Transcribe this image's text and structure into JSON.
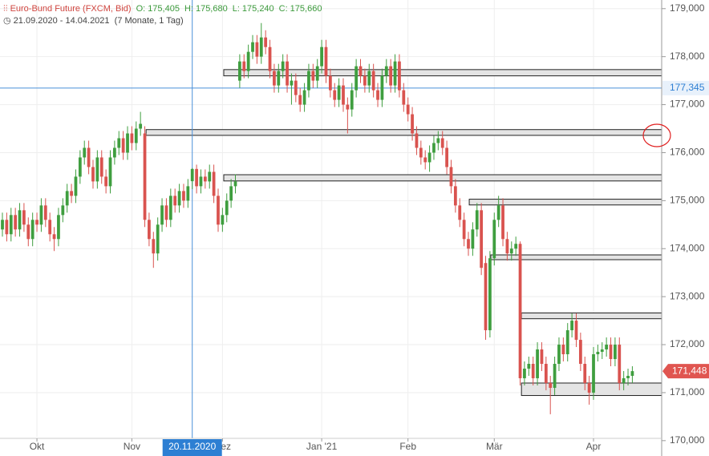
{
  "chart_data": {
    "type": "candlestick",
    "title": "Euro-Bund Future (FXCM, Bid)",
    "ohlc_header": [
      {
        "key": "O:",
        "value": "175,405"
      },
      {
        "key": "H:",
        "value": "175,680"
      },
      {
        "key": "L:",
        "value": "175,240"
      },
      {
        "key": "C:",
        "value": "175,660"
      }
    ],
    "period": "21.09.2020 - 14.04.2021",
    "period_length": "(7 Monate, 1 Tag)",
    "up_color": "#3f9e3f",
    "down_color": "#d9534f",
    "open": [
      174.4,
      174.6,
      174.3,
      174.7,
      174.4,
      174.8,
      174.5,
      174.2,
      174.6,
      174.5,
      174.9,
      174.6,
      174.3,
      174.2,
      174.7,
      174.9,
      175.2,
      175.1,
      175.5,
      175.9,
      176.1,
      175.7,
      175.4,
      175.9,
      175.5,
      175.3,
      175.9,
      176.1,
      176.3,
      176.0,
      176.4,
      176.2,
      176.5,
      176.4,
      174.6,
      174.2,
      173.9,
      174.5,
      174.9,
      174.6,
      175.1,
      174.9,
      175.2,
      175.0,
      175.405,
      175.66,
      175.3,
      175.5,
      175.4,
      175.6,
      175.1,
      174.5,
      174.7,
      175.0,
      175.3,
      177.5,
      177.9,
      177.7,
      178.1,
      178.3,
      178.0,
      178.4,
      178.2,
      177.7,
      177.4,
      177.7,
      177.9,
      177.4,
      177.5,
      177.2,
      177.0,
      177.3,
      177.7,
      177.5,
      177.8,
      178.2,
      177.6,
      177.3,
      177.1,
      177.4,
      177.0,
      176.9,
      177.3,
      177.8,
      177.6,
      177.4,
      177.7,
      177.3,
      177.1,
      177.6,
      177.8,
      177.4,
      177.9,
      177.3,
      177.0,
      176.8,
      176.4,
      176.1,
      175.9,
      175.8,
      176.0,
      176.2,
      176.3,
      176.1,
      175.7,
      175.3,
      174.9,
      174.6,
      174.2,
      174.0,
      174.4,
      174.8,
      173.7,
      172.3,
      173.8,
      174.6,
      174.9,
      174.2,
      173.9,
      174.0,
      174.1,
      171.3,
      171.5,
      171.6,
      171.3,
      171.9,
      171.6,
      171.2,
      171.1,
      171.6,
      172.0,
      171.8,
      172.3,
      172.5,
      172.1,
      171.6,
      171.2,
      171.0,
      171.8,
      171.85,
      171.9,
      172.0,
      171.7,
      172.0,
      171.2,
      171.3,
      171.35
    ],
    "high": [
      174.75,
      174.75,
      174.85,
      174.85,
      174.95,
      174.95,
      174.65,
      174.75,
      174.75,
      175.05,
      175.05,
      174.75,
      174.45,
      174.85,
      175.05,
      175.35,
      175.35,
      175.65,
      176.05,
      176.25,
      176.25,
      175.85,
      176.05,
      176.05,
      175.65,
      176.05,
      176.25,
      176.45,
      176.45,
      176.55,
      176.55,
      176.65,
      176.85,
      176.55,
      174.75,
      174.35,
      174.65,
      175.05,
      175.05,
      175.25,
      175.25,
      175.35,
      175.35,
      175.45,
      175.68,
      175.75,
      175.65,
      175.65,
      175.75,
      175.75,
      175.25,
      174.85,
      175.15,
      175.45,
      175.55,
      178.05,
      178.05,
      178.25,
      178.45,
      178.45,
      178.7,
      178.55,
      178.35,
      177.85,
      177.85,
      178.05,
      178.05,
      177.65,
      177.65,
      177.35,
      177.45,
      177.85,
      177.85,
      177.95,
      178.35,
      178.35,
      177.75,
      177.45,
      177.55,
      177.55,
      177.15,
      177.45,
      177.95,
      177.95,
      177.75,
      177.85,
      177.85,
      177.45,
      177.75,
      177.95,
      177.95,
      178.05,
      178.05,
      177.45,
      177.15,
      176.95,
      176.55,
      176.25,
      176.05,
      176.15,
      176.35,
      176.45,
      176.45,
      176.25,
      175.85,
      175.45,
      175.05,
      174.75,
      174.35,
      174.55,
      174.95,
      174.95,
      173.85,
      173.95,
      174.75,
      175.1,
      175.05,
      174.35,
      174.15,
      174.25,
      174.15,
      171.65,
      171.75,
      171.75,
      172.05,
      172.05,
      171.75,
      171.35,
      171.75,
      172.15,
      172.15,
      172.45,
      172.65,
      172.65,
      172.25,
      171.75,
      171.35,
      171.95,
      172.0,
      172.05,
      172.15,
      172.15,
      172.15,
      172.15,
      171.45,
      171.5,
      171.55
    ],
    "low": [
      174.25,
      174.15,
      174.15,
      174.25,
      174.25,
      174.35,
      174.05,
      174.05,
      174.35,
      174.35,
      174.45,
      174.15,
      173.95,
      174.05,
      174.55,
      174.75,
      174.95,
      174.95,
      175.35,
      175.75,
      175.55,
      175.25,
      175.25,
      175.35,
      175.15,
      175.15,
      175.75,
      175.95,
      175.85,
      175.85,
      176.05,
      176.05,
      176.35,
      174.45,
      174.05,
      173.6,
      173.75,
      174.35,
      174.45,
      174.45,
      174.75,
      174.75,
      174.85,
      174.85,
      175.24,
      175.15,
      175.15,
      175.25,
      175.25,
      174.95,
      174.35,
      174.35,
      174.55,
      174.85,
      175.15,
      177.35,
      177.55,
      177.55,
      177.95,
      177.85,
      177.85,
      178.05,
      177.55,
      177.25,
      177.25,
      177.55,
      177.25,
      177.0,
      177.05,
      176.85,
      176.85,
      177.15,
      177.35,
      177.35,
      177.65,
      177.45,
      177.15,
      176.95,
      176.95,
      176.85,
      176.4,
      176.75,
      177.15,
      177.45,
      177.25,
      177.25,
      177.15,
      176.95,
      176.95,
      177.45,
      177.25,
      177.25,
      177.15,
      176.85,
      176.65,
      176.25,
      175.95,
      175.75,
      175.65,
      175.6,
      175.85,
      176.05,
      175.95,
      175.55,
      175.15,
      174.75,
      174.45,
      174.05,
      173.85,
      173.85,
      174.25,
      173.45,
      172.1,
      172.15,
      173.65,
      174.45,
      174.05,
      173.75,
      173.75,
      173.85,
      171.15,
      171.15,
      171.35,
      171.15,
      171.15,
      171.45,
      171.05,
      170.55,
      170.95,
      171.45,
      171.65,
      171.65,
      172.15,
      171.95,
      171.45,
      171.05,
      170.75,
      170.85,
      171.65,
      171.7,
      171.75,
      171.55,
      171.55,
      171.05,
      171.05,
      171.15,
      171.2
    ],
    "close": [
      174.6,
      174.3,
      174.7,
      174.4,
      174.8,
      174.5,
      174.2,
      174.6,
      174.5,
      174.9,
      174.6,
      174.3,
      174.2,
      174.7,
      174.9,
      175.2,
      175.1,
      175.5,
      175.9,
      176.1,
      175.7,
      175.4,
      175.9,
      175.5,
      175.3,
      175.9,
      176.1,
      176.3,
      176.0,
      176.4,
      176.2,
      176.5,
      176.6,
      174.6,
      174.2,
      173.9,
      174.5,
      174.9,
      174.6,
      175.1,
      174.9,
      175.2,
      175.0,
      175.3,
      175.66,
      175.3,
      175.5,
      175.4,
      175.6,
      175.1,
      174.5,
      174.7,
      175.0,
      175.3,
      175.4,
      177.9,
      177.7,
      178.1,
      178.3,
      178.0,
      178.4,
      178.2,
      177.7,
      177.4,
      177.7,
      177.9,
      177.4,
      177.5,
      177.2,
      177.0,
      177.3,
      177.7,
      177.5,
      177.8,
      178.2,
      177.6,
      177.3,
      177.1,
      177.4,
      177.0,
      176.9,
      177.3,
      177.8,
      177.6,
      177.4,
      177.7,
      177.3,
      177.1,
      177.6,
      177.8,
      177.4,
      177.9,
      177.3,
      177.0,
      176.8,
      176.4,
      176.1,
      175.9,
      175.8,
      176.0,
      176.2,
      176.3,
      176.1,
      175.7,
      175.3,
      174.9,
      174.6,
      174.2,
      174.0,
      174.4,
      174.8,
      173.6,
      172.3,
      173.8,
      174.6,
      174.9,
      174.2,
      173.9,
      174.0,
      174.1,
      171.3,
      171.5,
      171.6,
      171.3,
      171.9,
      171.6,
      171.2,
      171.1,
      171.6,
      172.0,
      171.8,
      172.3,
      172.5,
      172.1,
      171.6,
      171.2,
      171.0,
      171.8,
      171.85,
      171.9,
      172.0,
      171.7,
      172.0,
      171.2,
      171.3,
      171.35,
      171.448
    ],
    "close_labels_last": "171,448",
    "xlim": [
      -0.56,
      152.8
    ],
    "ylim": [
      169.68,
      179.18
    ],
    "xticks": [
      {
        "value": 8,
        "label": "Okt"
      },
      {
        "value": 30,
        "label": "Nov"
      },
      {
        "value": 51,
        "label": "Dez"
      },
      {
        "value": 74,
        "label": "Jan '21"
      },
      {
        "value": 94,
        "label": "Feb"
      },
      {
        "value": 114,
        "label": "Mär"
      },
      {
        "value": 137,
        "label": "Apr"
      }
    ],
    "yticks": [
      {
        "value": 170,
        "label": "170,000"
      },
      {
        "value": 171,
        "label": "171,000"
      },
      {
        "value": 172,
        "label": "172,000"
      },
      {
        "value": 173,
        "label": "173,000"
      },
      {
        "value": 174,
        "label": "174,000"
      },
      {
        "value": 175,
        "label": "175,000"
      },
      {
        "value": 176,
        "label": "176,000"
      },
      {
        "value": 177,
        "label": "177,000"
      },
      {
        "value": 178,
        "label": "178,000"
      },
      {
        "value": 179,
        "label": "179,000"
      }
    ],
    "grid": true,
    "crosshair": {
      "x": 44,
      "x_label": "20.11.2020",
      "y": {
        "value": 177.345,
        "label": "177,345"
      }
    },
    "zones": [
      {
        "x0": 51.3,
        "top": 177.73,
        "bottom": 177.6
      },
      {
        "x0": 33.3,
        "top": 176.48,
        "bottom": 176.36
      },
      {
        "x0": 51.3,
        "top": 175.54,
        "bottom": 175.41
      },
      {
        "x0": 108.2,
        "top": 175.03,
        "bottom": 174.91
      },
      {
        "x0": 113.2,
        "top": 173.87,
        "bottom": 173.77
      },
      {
        "x0": 120.3,
        "top": 172.66,
        "bottom": 172.54
      },
      {
        "x0": 120.3,
        "top": 171.2,
        "bottom": 170.94
      }
    ]
  }
}
